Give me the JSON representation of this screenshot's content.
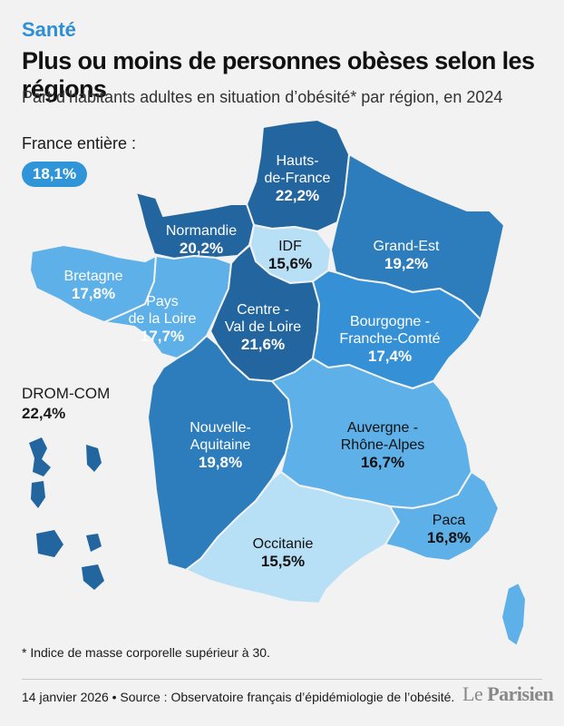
{
  "header": {
    "kicker": "Santé",
    "title": "Plus ou moins de personnes obèses selon les régions",
    "subtitle": "Part d’habitants adultes en situation d’obésité* par région, en 2024"
  },
  "national": {
    "label": "France entière :",
    "value": "18,1%"
  },
  "dromcom": {
    "label": "DROM-COM",
    "value": "22,4%"
  },
  "colors": {
    "darkest": "#23659f",
    "dark": "#2d7cbc",
    "medium": "#3590d6",
    "light": "#5eb0e8",
    "lighter": "#8fcaf0",
    "lightest": "#b7dff5",
    "background": "#f2f2f2"
  },
  "regions": [
    {
      "id": "hauts-de-france",
      "name_line1": "Hauts-",
      "name_line2": "de-France",
      "value": "22,2%"
    },
    {
      "id": "normandie",
      "name_line1": "Normandie",
      "value": "20,2%"
    },
    {
      "id": "idf",
      "name_line1": "IDF",
      "value": "15,6%"
    },
    {
      "id": "grand-est",
      "name_line1": "Grand-Est",
      "value": "19,2%"
    },
    {
      "id": "bretagne",
      "name_line1": "Bretagne",
      "value": "17,8%"
    },
    {
      "id": "pays-de-la-loire",
      "name_line1": "Pays",
      "name_line2": "de la Loire",
      "value": "17,7%"
    },
    {
      "id": "centre-val-de-loire",
      "name_line1": "Centre -",
      "name_line2": "Val de Loire",
      "value": "21,6%"
    },
    {
      "id": "bourgogne-franche-comte",
      "name_line1": "Bourgogne -",
      "name_line2": "Franche-Comté",
      "value": "17,4%"
    },
    {
      "id": "nouvelle-aquitaine",
      "name_line1": "Nouvelle-",
      "name_line2": "Aquitaine",
      "value": "19,8%"
    },
    {
      "id": "auvergne-rhone-alpes",
      "name_line1": "Auvergne -",
      "name_line2": "Rhône-Alpes",
      "value": "16,7%"
    },
    {
      "id": "occitanie",
      "name_line1": "Occitanie",
      "value": "15,5%"
    },
    {
      "id": "paca",
      "name_line1": "Paca",
      "value": "16,8%"
    }
  ],
  "footnote": "* Indice de masse corporelle supérieur à 30.",
  "source": "14 janvier 2026 • Source : Observatoire français d’épidémiologie de l’obésité.",
  "logo": {
    "le": "Le",
    "name": "Parisien"
  }
}
